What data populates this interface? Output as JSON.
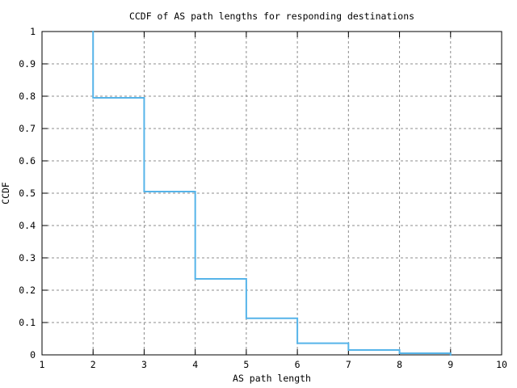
{
  "chart_data": {
    "type": "line",
    "subtype": "step-ccdf",
    "title": "CCDF of AS path lengths for responding destinations",
    "xlabel": "AS path length",
    "ylabel": "CCDF",
    "xlim": [
      1,
      10
    ],
    "ylim": [
      0,
      1
    ],
    "x_tick_labels": [
      "1",
      "2",
      "3",
      "4",
      "5",
      "6",
      "7",
      "8",
      "9",
      "10"
    ],
    "x_tick_values": [
      1,
      2,
      3,
      4,
      5,
      6,
      7,
      8,
      9,
      10
    ],
    "y_tick_labels": [
      "0",
      "0.1",
      "0.2",
      "0.3",
      "0.4",
      "0.5",
      "0.6",
      "0.7",
      "0.8",
      "0.9",
      "1"
    ],
    "y_tick_values": [
      0,
      0.1,
      0.2,
      0.3,
      0.4,
      0.5,
      0.6,
      0.7,
      0.8,
      0.9,
      1
    ],
    "grid": true,
    "legend": false,
    "line_color": "#56b4e9",
    "grid_color": "#8c8c8c",
    "frame_color": "#000000",
    "background_color": "#ffffff",
    "x": [
      1,
      2,
      3,
      4,
      5,
      6,
      7,
      8,
      9
    ],
    "ccdf_values": [
      1.0,
      0.795,
      0.505,
      0.235,
      0.113,
      0.036,
      0.015,
      0.005,
      0
    ],
    "series": [
      {
        "name": "CCDF",
        "step_points": [
          [
            2,
            1.0
          ],
          [
            2,
            0.795
          ],
          [
            3,
            0.795
          ],
          [
            3,
            0.505
          ],
          [
            4,
            0.505
          ],
          [
            4,
            0.235
          ],
          [
            5,
            0.235
          ],
          [
            5,
            0.113
          ],
          [
            6,
            0.113
          ],
          [
            6,
            0.036
          ],
          [
            7,
            0.036
          ],
          [
            7,
            0.015
          ],
          [
            8,
            0.015
          ],
          [
            8,
            0.005
          ],
          [
            9,
            0.005
          ],
          [
            9,
            0
          ]
        ]
      }
    ]
  }
}
